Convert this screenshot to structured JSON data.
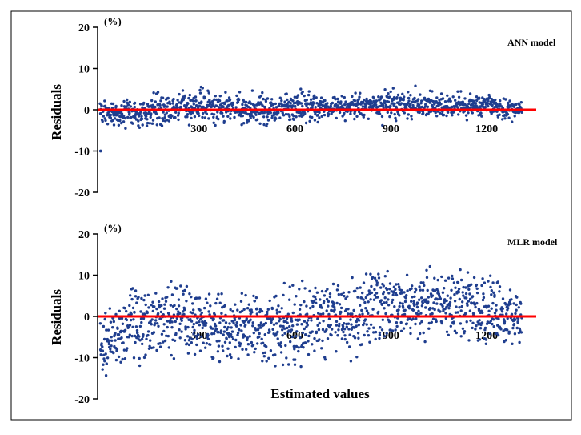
{
  "chart_data": [
    {
      "type": "scatter",
      "title": "ANN model",
      "unit": "(%)",
      "ylabel": "Residuals",
      "xlabel": "",
      "xlim": [
        0,
        1320
      ],
      "ylim": [
        -20,
        20
      ],
      "xticks": [
        "300",
        "600",
        "900",
        "1200"
      ],
      "yticks": [
        "20",
        "10",
        "0",
        "-10",
        "-20"
      ],
      "reference_line": {
        "y": 0,
        "color": "#ff0000"
      },
      "point_color": "#1f3e8f",
      "n_points": 1300,
      "residual_envelope": [
        {
          "x": 0,
          "lo": -6,
          "hi": 4
        },
        {
          "x": 150,
          "lo": -6,
          "hi": 5
        },
        {
          "x": 300,
          "lo": -5,
          "hi": 7
        },
        {
          "x": 450,
          "lo": -6,
          "hi": 6
        },
        {
          "x": 600,
          "lo": -6,
          "hi": 7
        },
        {
          "x": 750,
          "lo": -4,
          "hi": 5
        },
        {
          "x": 900,
          "lo": -4,
          "hi": 7
        },
        {
          "x": 1050,
          "lo": -4,
          "hi": 6
        },
        {
          "x": 1200,
          "lo": -4,
          "hi": 6
        },
        {
          "x": 1320,
          "lo": -3,
          "hi": 3
        }
      ],
      "outliers": [
        {
          "x": 2,
          "y": -10
        }
      ]
    },
    {
      "type": "scatter",
      "title": "MLR model",
      "unit": "(%)",
      "ylabel": "Residuals",
      "xlabel": "Estimated values",
      "xlim": [
        0,
        1320
      ],
      "ylim": [
        -20,
        20
      ],
      "xticks": [
        "300",
        "600",
        "900",
        "1200"
      ],
      "yticks": [
        "20",
        "10",
        "0",
        "-10",
        "-20"
      ],
      "reference_line": {
        "y": 0,
        "color": "#ff0000"
      },
      "point_color": "#1f3e8f",
      "n_points": 1300,
      "residual_envelope": [
        {
          "x": 0,
          "lo": -16,
          "hi": 2
        },
        {
          "x": 100,
          "lo": -13,
          "hi": 8
        },
        {
          "x": 200,
          "lo": -11,
          "hi": 10
        },
        {
          "x": 300,
          "lo": -11,
          "hi": 9
        },
        {
          "x": 400,
          "lo": -13,
          "hi": 7
        },
        {
          "x": 500,
          "lo": -12,
          "hi": 6
        },
        {
          "x": 600,
          "lo": -14,
          "hi": 9
        },
        {
          "x": 700,
          "lo": -12,
          "hi": 9
        },
        {
          "x": 800,
          "lo": -13,
          "hi": 12
        },
        {
          "x": 900,
          "lo": -6,
          "hi": 13
        },
        {
          "x": 1000,
          "lo": -7,
          "hi": 13
        },
        {
          "x": 1100,
          "lo": -5,
          "hi": 13
        },
        {
          "x": 1200,
          "lo": -8,
          "hi": 12
        },
        {
          "x": 1320,
          "lo": -7,
          "hi": 6
        }
      ]
    }
  ]
}
